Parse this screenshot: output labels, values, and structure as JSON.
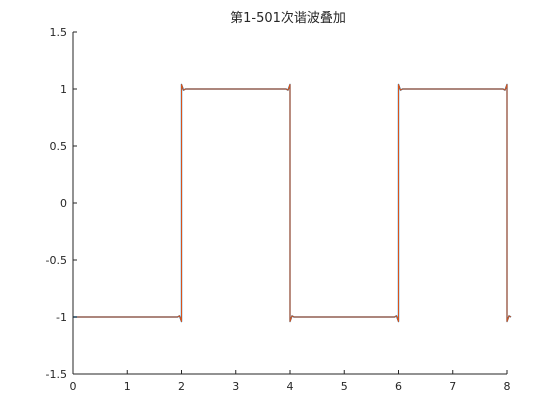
{
  "chart_data": {
    "type": "line",
    "title": "第1-501次谐波叠加",
    "xlabel": "",
    "ylabel": "",
    "xlim": [
      0,
      8
    ],
    "ylim": [
      -1.5,
      1.5
    ],
    "x_ticks": [
      "0",
      "1",
      "2",
      "3",
      "4",
      "5",
      "6",
      "7",
      "8"
    ],
    "y_ticks": [
      "1.5",
      "1",
      "0.5",
      "0",
      "-0.5",
      "-1",
      "-1.5"
    ],
    "grid": false,
    "legend": "none",
    "series": [
      {
        "color": "#0072BD",
        "x": [
          0,
          2,
          2,
          4,
          4,
          6,
          6,
          8,
          8
        ],
        "y": [
          -1,
          -1,
          1,
          1,
          -1,
          -1,
          1,
          1,
          -1
        ]
      },
      {
        "color": "#D95319",
        "x": [
          0,
          2,
          2,
          4,
          4,
          6,
          6,
          8,
          8
        ],
        "y": [
          -1,
          -1,
          1,
          1,
          -1,
          -1,
          1,
          1,
          -1
        ]
      }
    ]
  }
}
